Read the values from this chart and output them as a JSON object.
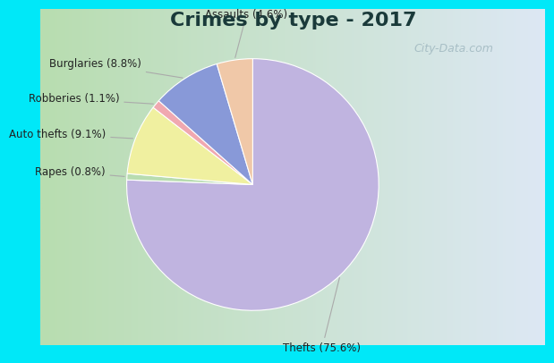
{
  "title": "Crimes by type - 2017",
  "labels": [
    "Thefts",
    "Rapes",
    "Auto thefts",
    "Robberies",
    "Burglaries",
    "Assaults"
  ],
  "values": [
    75.6,
    0.8,
    9.1,
    1.1,
    8.8,
    4.6
  ],
  "colors": [
    "#c0b4e0",
    "#b8dcb0",
    "#f0f0a0",
    "#f0a8b0",
    "#8899d8",
    "#f0c8a8"
  ],
  "label_texts": [
    "Thefts (75.6%)",
    "Rapes (0.8%)",
    "Auto thefts (9.1%)",
    "Robberies (1.1%)",
    "Burglaries (8.8%)",
    "Assaults (4.6%)"
  ],
  "title_fontsize": 16,
  "border_color": "#00e8f8",
  "bg_left_color": "#b8ddb0",
  "bg_right_color": "#dde8f4",
  "watermark_text": "City-Data.com",
  "watermark_color": "#a0b8c0",
  "label_color": "#222222",
  "label_fontsize": 8.5,
  "arrow_color": "#aaaaaa",
  "startangle": 90
}
